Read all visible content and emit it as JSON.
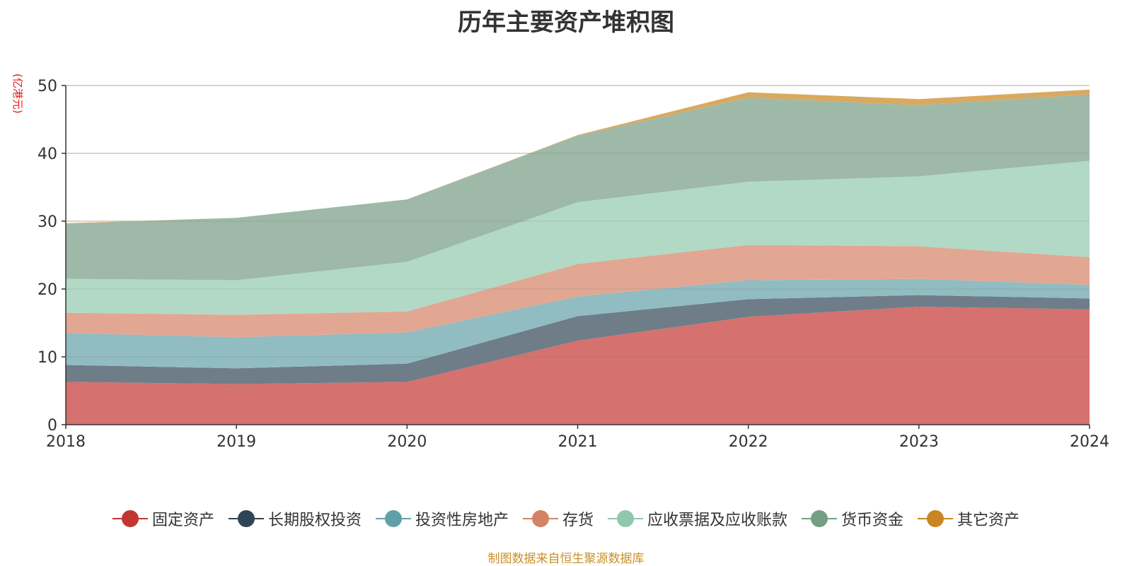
{
  "title": "历年主要资产堆积图",
  "unit_label": "(亿港元)",
  "source_note": "制图数据来自恒生聚源数据库",
  "chart_data": {
    "type": "area",
    "stacked": true,
    "title": "历年主要资产堆积图",
    "ylabel": "(亿港元)",
    "xlabel": "",
    "x": [
      "2018",
      "2019",
      "2020",
      "2021",
      "2022",
      "2023",
      "2024"
    ],
    "ylim": [
      0,
      50
    ],
    "yticks": [
      0,
      10,
      20,
      30,
      40,
      50
    ],
    "grid": true,
    "legend_position": "bottom",
    "series": [
      {
        "name": "固定资产",
        "color": "#c23531",
        "fill": "#d5716e",
        "values": [
          6.3,
          6.0,
          6.3,
          12.4,
          15.9,
          17.4,
          17.0
        ]
      },
      {
        "name": "长期股权投资",
        "color": "#2f4554",
        "fill": "#6e7d88",
        "values": [
          2.5,
          2.3,
          2.7,
          3.6,
          2.6,
          1.7,
          1.6
        ]
      },
      {
        "name": "投资性房地产",
        "color": "#61a0a8",
        "fill": "#90bcc2",
        "values": [
          4.7,
          4.6,
          4.6,
          2.9,
          2.8,
          2.4,
          2.0
        ]
      },
      {
        "name": "存货",
        "color": "#d48265",
        "fill": "#e1a793",
        "values": [
          3.0,
          3.3,
          3.1,
          4.8,
          5.2,
          4.8,
          4.1
        ]
      },
      {
        "name": "应收票据及应收账款",
        "color": "#91c7ae",
        "fill": "#b1d9c6",
        "values": [
          5.0,
          5.1,
          7.3,
          9.1,
          9.3,
          10.3,
          14.2
        ]
      },
      {
        "name": "货币资金",
        "color": "#749f83",
        "fill": "#9eb9a7",
        "values": [
          8.1,
          9.2,
          9.2,
          9.8,
          12.4,
          10.5,
          9.8
        ]
      },
      {
        "name": "其它资产",
        "color": "#ca8622",
        "fill": "#d9a95f",
        "values": [
          0.1,
          0.0,
          0.0,
          0.1,
          0.8,
          0.9,
          0.7
        ]
      }
    ]
  }
}
